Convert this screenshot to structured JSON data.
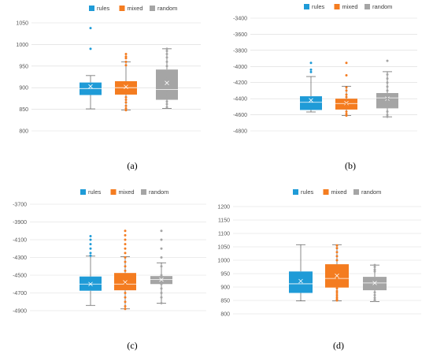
{
  "series_colors": {
    "rules": "#1f9bd7",
    "mixed": "#f47c20",
    "random": "#a5a5a5"
  },
  "chart_data": [
    {
      "type": "box",
      "caption": "(a)",
      "yticks": [
        800,
        850,
        900,
        950,
        1000,
        1050
      ],
      "ylim": [
        800,
        1050
      ],
      "legend": [
        "rules",
        "mixed",
        "random"
      ],
      "legend_position": "top",
      "series": [
        {
          "name": "rules",
          "min": 851,
          "q1": 883,
          "median": 898,
          "q3": 912,
          "max": 928,
          "mean": 903,
          "outliers": [
            990,
            1038
          ]
        },
        {
          "name": "mixed",
          "min": 848,
          "q1": 884,
          "median": 900,
          "q3": 915,
          "max": 960,
          "mean": 902,
          "outliers": [
            848,
            852,
            858,
            866,
            872,
            878,
            952,
            960,
            968,
            972,
            978
          ]
        },
        {
          "name": "random",
          "min": 852,
          "q1": 872,
          "median": 896,
          "q3": 942,
          "max": 990,
          "mean": 911,
          "outliers": [
            855,
            862,
            868,
            878,
            888,
            905,
            920,
            935,
            950,
            960,
            970,
            978,
            985,
            990
          ]
        }
      ]
    },
    {
      "type": "box",
      "caption": "(b)",
      "yticks": [
        -3400,
        -3600,
        -3800,
        -4000,
        -4200,
        -4400,
        -4600,
        -4800
      ],
      "ylim": [
        -4800,
        -3400
      ],
      "legend": [
        "rules",
        "mixed",
        "random"
      ],
      "legend_position": "top",
      "series": [
        {
          "name": "rules",
          "min": -4565,
          "q1": -4540,
          "median": -4445,
          "q3": -4370,
          "max": -4125,
          "mean": -4420,
          "outliers": [
            -3955,
            -4040,
            -4070
          ]
        },
        {
          "name": "mixed",
          "min": -4610,
          "q1": -4535,
          "median": -4460,
          "q3": -4400,
          "max": -4245,
          "mean": -4455,
          "outliers": [
            -3955,
            -4110,
            -4260,
            -4300,
            -4350,
            -4380,
            -4420,
            -4470,
            -4520,
            -4560,
            -4590,
            -4610
          ]
        },
        {
          "name": "random",
          "min": -4625,
          "q1": -4520,
          "median": -4390,
          "q3": -4330,
          "max": -4065,
          "mean": -4400,
          "outliers": [
            -3930,
            -4100,
            -4150,
            -4200,
            -4250,
            -4300,
            -4350,
            -4400,
            -4450,
            -4500,
            -4560,
            -4600,
            -4625
          ]
        }
      ]
    },
    {
      "type": "box",
      "caption": "(c)",
      "yticks": [
        -3700,
        -3900,
        -4100,
        -4300,
        -4500,
        -4700,
        -4900
      ],
      "ylim": [
        -4900,
        -3700
      ],
      "legend": [
        "rules",
        "mixed",
        "random"
      ],
      "legend_position": "top",
      "series": [
        {
          "name": "rules",
          "min": -4840,
          "q1": -4675,
          "median": -4600,
          "q3": -4515,
          "max": -4285,
          "mean": -4600,
          "outliers": [
            -4060,
            -4100,
            -4150,
            -4200,
            -4250,
            -4280
          ]
        },
        {
          "name": "mixed",
          "min": -4880,
          "q1": -4670,
          "median": -4600,
          "q3": -4475,
          "max": -4290,
          "mean": -4580,
          "outliers": [
            -4000,
            -4050,
            -4100,
            -4150,
            -4200,
            -4250,
            -4300,
            -4350,
            -4400,
            -4450,
            -4500,
            -4550,
            -4600,
            -4650,
            -4700,
            -4750,
            -4800,
            -4850,
            -4880
          ]
        },
        {
          "name": "random",
          "min": -4815,
          "q1": -4600,
          "median": -4550,
          "q3": -4510,
          "max": -4360,
          "mean": -4550,
          "outliers": [
            -4000,
            -4100,
            -4200,
            -4300,
            -4400,
            -4500,
            -4600,
            -4650,
            -4700,
            -4750,
            -4815
          ]
        }
      ]
    },
    {
      "type": "box",
      "caption": "(d)",
      "yticks": [
        800,
        850,
        900,
        950,
        1000,
        1050,
        1100,
        1150,
        1200
      ],
      "ylim": [
        800,
        1200
      ],
      "legend": [
        "rules",
        "mixed",
        "random"
      ],
      "legend_position": "top",
      "series": [
        {
          "name": "rules",
          "min": 848,
          "q1": 878,
          "median": 912,
          "q3": 958,
          "max": 1058,
          "mean": 922,
          "outliers": []
        },
        {
          "name": "mixed",
          "min": 848,
          "q1": 898,
          "median": 932,
          "q3": 985,
          "max": 1058,
          "mean": 942,
          "outliers": [
            850,
            855,
            862,
            870,
            878,
            885,
            895,
            905,
            915,
            925,
            935,
            950,
            965,
            980,
            1000,
            1015,
            1030,
            1045,
            1055
          ]
        },
        {
          "name": "random",
          "min": 846,
          "q1": 888,
          "median": 915,
          "q3": 938,
          "max": 982,
          "mean": 915,
          "outliers": [
            848,
            852,
            860,
            870,
            880,
            958,
            965,
            975,
            982
          ]
        }
      ]
    }
  ]
}
